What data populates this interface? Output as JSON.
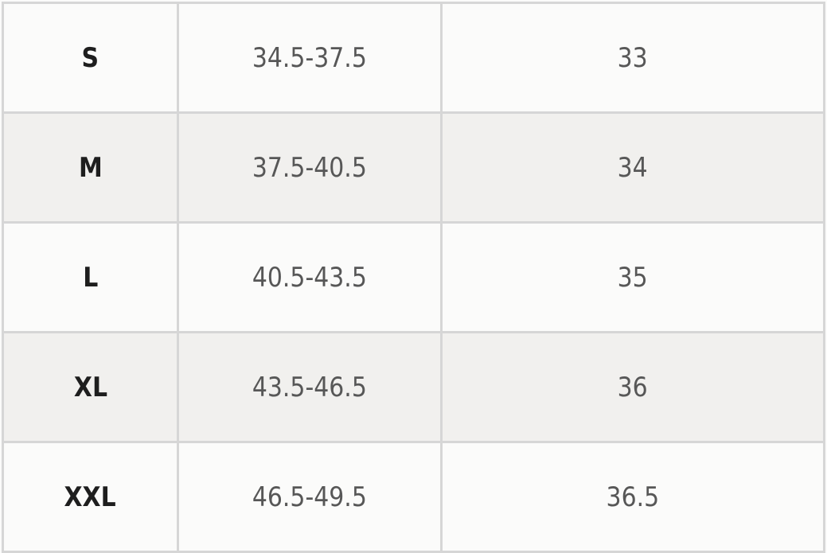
{
  "size_table": {
    "rows": [
      {
        "size": "S",
        "range": "34.5-37.5",
        "value": "33"
      },
      {
        "size": "M",
        "range": "37.5-40.5",
        "value": "34"
      },
      {
        "size": "L",
        "range": "40.5-43.5",
        "value": "35"
      },
      {
        "size": "XL",
        "range": "43.5-46.5",
        "value": "36"
      },
      {
        "size": "XXL",
        "range": "46.5-49.5",
        "value": "36.5"
      }
    ]
  },
  "colors": {
    "row_bg": "#fbfbfa",
    "alt_row_bg": "#f1f0ee",
    "grid": "#d6d6d6",
    "size_text": "#1e1e1e",
    "value_text": "#575757"
  }
}
